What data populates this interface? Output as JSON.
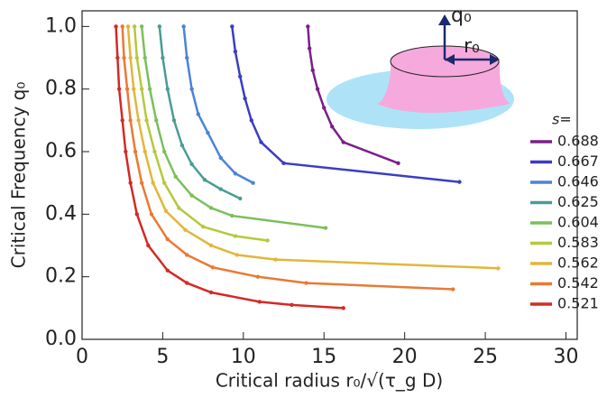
{
  "chart_data": {
    "type": "line",
    "xlabel": "Critical radius r₀/√(τ_g D)",
    "ylabel": "Critical Frequency q₀",
    "xlim": [
      0,
      30.7
    ],
    "ylim": [
      0,
      1.05
    ],
    "xticks": [
      0,
      5,
      10,
      15,
      20,
      25,
      30
    ],
    "yticks": [
      {
        "value": 0,
        "label": "0.0"
      },
      0.2,
      0.4,
      0.6,
      0.8,
      {
        "value": 1,
        "label": "1.0"
      }
    ],
    "legend_title": "s=",
    "annotations": [
      "q₀",
      "r₀"
    ],
    "series": [
      {
        "name": "0.688",
        "color": "#7b1f8a",
        "x": [
          14.0,
          14.1,
          14.3,
          14.6,
          15.0,
          15.5,
          16.2,
          19.6
        ],
        "values": [
          1.0,
          0.93,
          0.86,
          0.8,
          0.74,
          0.68,
          0.63,
          0.563
        ]
      },
      {
        "name": "0.667",
        "color": "#3a3ec0",
        "x": [
          9.3,
          9.5,
          9.8,
          10.1,
          10.5,
          11.1,
          12.5,
          23.4
        ],
        "values": [
          1.0,
          0.92,
          0.84,
          0.77,
          0.7,
          0.63,
          0.563,
          0.503
        ]
      },
      {
        "name": "0.646",
        "color": "#4a84d6",
        "x": [
          6.3,
          6.5,
          6.8,
          7.2,
          7.8,
          8.6,
          9.5,
          10.6
        ],
        "values": [
          1.0,
          0.9,
          0.8,
          0.72,
          0.66,
          0.58,
          0.53,
          0.5
        ]
      },
      {
        "name": "0.625",
        "color": "#4a9c94",
        "x": [
          4.8,
          5.0,
          5.3,
          5.7,
          6.2,
          6.8,
          7.6,
          8.6,
          9.8
        ],
        "values": [
          1.0,
          0.9,
          0.8,
          0.7,
          0.62,
          0.56,
          0.51,
          0.48,
          0.45
        ]
      },
      {
        "name": "0.604",
        "color": "#7bbf5a",
        "x": [
          3.7,
          3.9,
          4.2,
          4.6,
          5.1,
          5.8,
          6.8,
          8.0,
          9.3,
          15.1
        ],
        "values": [
          1.0,
          0.9,
          0.8,
          0.7,
          0.6,
          0.52,
          0.46,
          0.42,
          0.395,
          0.356
        ]
      },
      {
        "name": "0.583",
        "color": "#b6c83c",
        "x": [
          3.25,
          3.4,
          3.7,
          4.0,
          4.5,
          5.1,
          6.0,
          7.5,
          9.5,
          11.5
        ],
        "values": [
          1.0,
          0.9,
          0.8,
          0.7,
          0.6,
          0.5,
          0.42,
          0.36,
          0.33,
          0.316
        ]
      },
      {
        "name": "0.562",
        "color": "#e2b63a",
        "x": [
          2.85,
          3.0,
          3.2,
          3.5,
          3.9,
          4.4,
          5.2,
          6.4,
          8.0,
          9.6,
          12.0,
          25.8
        ],
        "values": [
          1.0,
          0.9,
          0.8,
          0.7,
          0.6,
          0.5,
          0.41,
          0.35,
          0.3,
          0.27,
          0.255,
          0.227
        ]
      },
      {
        "name": "0.542",
        "color": "#e87a35",
        "x": [
          2.5,
          2.6,
          2.8,
          3.0,
          3.3,
          3.7,
          4.3,
          5.3,
          6.5,
          8.1,
          10.9,
          13.9,
          23.0
        ],
        "values": [
          1.0,
          0.9,
          0.8,
          0.7,
          0.6,
          0.5,
          0.4,
          0.32,
          0.27,
          0.23,
          0.2,
          0.18,
          0.16
        ]
      },
      {
        "name": "0.521",
        "color": "#d42a25",
        "x": [
          2.1,
          2.2,
          2.3,
          2.5,
          2.7,
          3.0,
          3.4,
          4.1,
          5.3,
          6.5,
          8.0,
          11.0,
          13.0,
          16.2
        ],
        "values": [
          1.0,
          0.9,
          0.8,
          0.7,
          0.6,
          0.5,
          0.4,
          0.3,
          0.22,
          0.18,
          0.15,
          0.12,
          0.11,
          0.1
        ]
      }
    ]
  }
}
